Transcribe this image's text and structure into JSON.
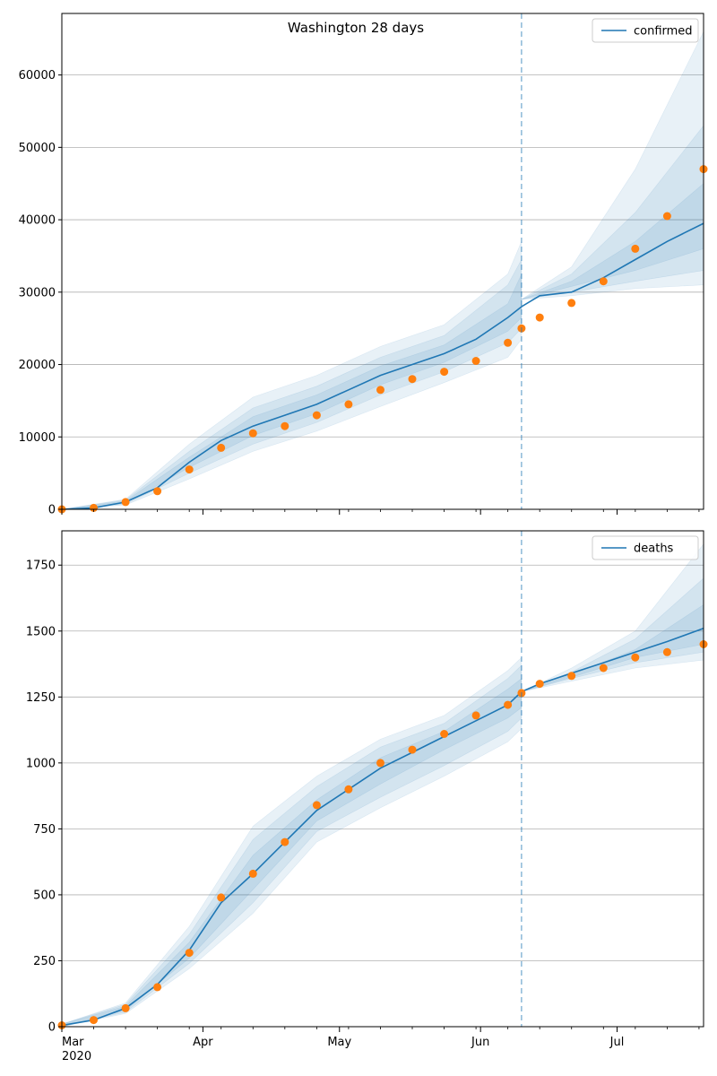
{
  "chart_data": [
    {
      "type": "line",
      "title": "Washington 28 days",
      "legend": {
        "entries": [
          "confirmed"
        ],
        "placement": "upper-right"
      },
      "x_range": [
        "2020-03-01",
        "2020-07-20"
      ],
      "ylim": [
        0,
        68500
      ],
      "yticks": [
        0,
        10000,
        20000,
        30000,
        40000,
        50000,
        60000
      ],
      "grid": "y",
      "forecast_start": "2020-06-10",
      "observed": {
        "x": [
          "2020-03-01",
          "2020-03-08",
          "2020-03-15",
          "2020-03-22",
          "2020-03-29",
          "2020-04-05",
          "2020-04-12",
          "2020-04-19",
          "2020-04-26",
          "2020-05-03",
          "2020-05-10",
          "2020-05-17",
          "2020-05-24",
          "2020-05-31",
          "2020-06-07",
          "2020-06-10",
          "2020-06-14",
          "2020-06-21",
          "2020-06-28",
          "2020-07-05",
          "2020-07-12",
          "2020-07-20"
        ],
        "y": [
          0,
          200,
          1000,
          2500,
          5500,
          8500,
          10500,
          11500,
          13000,
          14500,
          16500,
          18000,
          19000,
          20500,
          23000,
          25000,
          26500,
          28500,
          31500,
          36000,
          40500,
          47000
        ]
      },
      "model": {
        "x": [
          "2020-03-01",
          "2020-03-08",
          "2020-03-15",
          "2020-03-22",
          "2020-03-29",
          "2020-04-05",
          "2020-04-12",
          "2020-04-19",
          "2020-04-26",
          "2020-05-03",
          "2020-05-10",
          "2020-05-17",
          "2020-05-24",
          "2020-05-31",
          "2020-06-07",
          "2020-06-10",
          "2020-06-14",
          "2020-06-21",
          "2020-06-28",
          "2020-07-05",
          "2020-07-12",
          "2020-07-20"
        ],
        "y": [
          0,
          200,
          1000,
          3000,
          6500,
          9500,
          11500,
          13000,
          14500,
          16500,
          18500,
          20000,
          21500,
          23500,
          26500,
          28000,
          29500,
          30000,
          32000,
          34500,
          37000,
          39500
        ]
      },
      "bands": [
        {
          "x": [
            "2020-03-01",
            "2020-03-15",
            "2020-03-29",
            "2020-04-12",
            "2020-04-26",
            "2020-05-10",
            "2020-05-24",
            "2020-06-07",
            "2020-06-10"
          ],
          "lower": [
            0,
            600,
            4200,
            8000,
            10800,
            14200,
            17500,
            21000,
            23500
          ],
          "upper": [
            0,
            1400,
            9000,
            15500,
            18500,
            22500,
            25500,
            32500,
            37000
          ]
        },
        {
          "x": [
            "2020-03-01",
            "2020-03-15",
            "2020-03-29",
            "2020-04-12",
            "2020-04-26",
            "2020-05-10",
            "2020-05-24",
            "2020-06-07",
            "2020-06-10"
          ],
          "lower": [
            0,
            700,
            5000,
            9000,
            12000,
            15800,
            19000,
            23000,
            25000
          ],
          "upper": [
            0,
            1300,
            8000,
            14000,
            17000,
            21000,
            24000,
            31000,
            34500
          ]
        },
        {
          "x": [
            "2020-03-01",
            "2020-03-15",
            "2020-03-29",
            "2020-04-12",
            "2020-04-26",
            "2020-05-10",
            "2020-05-24",
            "2020-06-07",
            "2020-06-10"
          ],
          "lower": [
            0,
            850,
            5800,
            10200,
            13200,
            17200,
            20300,
            24600,
            26500
          ],
          "upper": [
            0,
            1150,
            7200,
            12800,
            15800,
            19800,
            22700,
            28400,
            32500
          ]
        },
        {
          "x": [
            "2020-06-10",
            "2020-06-21",
            "2020-07-05",
            "2020-07-20"
          ],
          "lower": [
            29000,
            29500,
            30500,
            31000
          ],
          "upper": [
            29000,
            33500,
            47000,
            66000
          ]
        },
        {
          "x": [
            "2020-06-10",
            "2020-06-21",
            "2020-07-05",
            "2020-07-20"
          ],
          "lower": [
            29000,
            30000,
            31500,
            33000
          ],
          "upper": [
            29000,
            32500,
            41000,
            53000
          ]
        },
        {
          "x": [
            "2020-06-10",
            "2020-06-21",
            "2020-07-05",
            "2020-07-20"
          ],
          "lower": [
            29000,
            30800,
            33000,
            36000
          ],
          "upper": [
            29000,
            31500,
            37000,
            45000
          ]
        }
      ]
    },
    {
      "type": "line",
      "title": "",
      "legend": {
        "entries": [
          "deaths"
        ],
        "placement": "upper-right"
      },
      "x_range": [
        "2020-03-01",
        "2020-07-20"
      ],
      "xticks": [
        "Mar\n2020",
        "Apr",
        "May",
        "Jun",
        "Jul"
      ],
      "ylim": [
        0,
        1880
      ],
      "yticks": [
        0,
        250,
        500,
        750,
        1000,
        1250,
        1500,
        1750
      ],
      "grid": "y",
      "forecast_start": "2020-06-10",
      "observed": {
        "x": [
          "2020-03-01",
          "2020-03-08",
          "2020-03-15",
          "2020-03-22",
          "2020-03-29",
          "2020-04-05",
          "2020-04-12",
          "2020-04-19",
          "2020-04-26",
          "2020-05-03",
          "2020-05-10",
          "2020-05-17",
          "2020-05-24",
          "2020-05-31",
          "2020-06-07",
          "2020-06-10",
          "2020-06-14",
          "2020-06-21",
          "2020-06-28",
          "2020-07-05",
          "2020-07-12",
          "2020-07-20"
        ],
        "y": [
          5,
          25,
          70,
          150,
          280,
          490,
          580,
          700,
          840,
          900,
          1000,
          1050,
          1110,
          1180,
          1220,
          1265,
          1300,
          1330,
          1360,
          1400,
          1420,
          1450
        ]
      },
      "model": {
        "x": [
          "2020-03-01",
          "2020-03-08",
          "2020-03-15",
          "2020-03-22",
          "2020-03-29",
          "2020-04-05",
          "2020-04-12",
          "2020-04-19",
          "2020-04-26",
          "2020-05-03",
          "2020-05-10",
          "2020-05-17",
          "2020-05-24",
          "2020-05-31",
          "2020-06-07",
          "2020-06-10",
          "2020-06-14",
          "2020-06-21",
          "2020-06-28",
          "2020-07-05",
          "2020-07-12",
          "2020-07-20"
        ],
        "y": [
          5,
          25,
          70,
          160,
          290,
          470,
          580,
          700,
          820,
          900,
          980,
          1040,
          1100,
          1160,
          1220,
          1270,
          1300,
          1340,
          1380,
          1420,
          1460,
          1510
        ]
      },
      "bands": [
        {
          "x": [
            "2020-03-01",
            "2020-03-15",
            "2020-03-29",
            "2020-04-12",
            "2020-04-26",
            "2020-05-10",
            "2020-05-24",
            "2020-06-07",
            "2020-06-10"
          ],
          "lower": [
            0,
            50,
            220,
            430,
            700,
            830,
            950,
            1080,
            1130
          ],
          "upper": [
            10,
            90,
            380,
            760,
            950,
            1090,
            1180,
            1350,
            1400
          ]
        },
        {
          "x": [
            "2020-03-01",
            "2020-03-15",
            "2020-03-29",
            "2020-04-12",
            "2020-04-26",
            "2020-05-10",
            "2020-05-24",
            "2020-06-07",
            "2020-06-10"
          ],
          "lower": [
            0,
            55,
            240,
            470,
            740,
            870,
            990,
            1120,
            1170
          ],
          "upper": [
            10,
            85,
            350,
            710,
            910,
            1060,
            1150,
            1320,
            1370
          ]
        },
        {
          "x": [
            "2020-03-01",
            "2020-03-15",
            "2020-03-29",
            "2020-04-12",
            "2020-04-26",
            "2020-05-10",
            "2020-05-24",
            "2020-06-07",
            "2020-06-10"
          ],
          "lower": [
            0,
            62,
            260,
            520,
            780,
            920,
            1050,
            1170,
            1210
          ],
          "upper": [
            10,
            78,
            320,
            650,
            860,
            1020,
            1120,
            1280,
            1320
          ]
        },
        {
          "x": [
            "2020-06-10",
            "2020-06-21",
            "2020-07-05",
            "2020-07-20"
          ],
          "lower": [
            1270,
            1310,
            1360,
            1390
          ],
          "upper": [
            1270,
            1360,
            1500,
            1830
          ]
        },
        {
          "x": [
            "2020-06-10",
            "2020-06-21",
            "2020-07-05",
            "2020-07-20"
          ],
          "lower": [
            1270,
            1320,
            1380,
            1420
          ],
          "upper": [
            1270,
            1345,
            1470,
            1700
          ]
        },
        {
          "x": [
            "2020-06-10",
            "2020-06-21",
            "2020-07-05",
            "2020-07-20"
          ],
          "lower": [
            1270,
            1325,
            1400,
            1450
          ],
          "upper": [
            1270,
            1335,
            1430,
            1600
          ]
        }
      ]
    }
  ]
}
